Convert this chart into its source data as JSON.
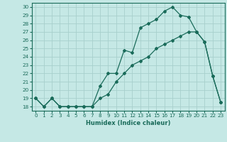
{
  "xlabel": "Humidex (Indice chaleur)",
  "ylabel": "",
  "background_color": "#c5e8e5",
  "grid_color": "#a8d0cc",
  "line_color": "#1a6b5a",
  "xlim": [
    -0.5,
    23.5
  ],
  "ylim": [
    17.5,
    30.5
  ],
  "yticks": [
    18,
    19,
    20,
    21,
    22,
    23,
    24,
    25,
    26,
    27,
    28,
    29,
    30
  ],
  "xticks": [
    0,
    1,
    2,
    3,
    4,
    5,
    6,
    7,
    8,
    9,
    10,
    11,
    12,
    13,
    14,
    15,
    16,
    17,
    18,
    19,
    20,
    21,
    22,
    23
  ],
  "xtick_labels": [
    "0",
    "1",
    "2",
    "3",
    "4",
    "5",
    "6",
    "7",
    "8",
    "9",
    "10",
    "11",
    "12",
    "13",
    "14",
    "15",
    "16",
    "17",
    "18",
    "19",
    "20",
    "21",
    "22",
    "23"
  ],
  "line1_x": [
    0,
    1,
    2,
    3,
    4,
    5,
    6,
    7,
    8,
    9,
    10,
    11,
    12,
    13,
    14,
    15,
    16,
    17,
    18,
    19,
    20,
    21,
    22,
    23
  ],
  "line1_y": [
    19.0,
    18.0,
    19.0,
    18.0,
    18.0,
    18.0,
    18.0,
    18.0,
    19.0,
    19.5,
    21.0,
    22.0,
    23.0,
    23.5,
    24.0,
    25.0,
    25.5,
    26.0,
    26.5,
    27.0,
    27.0,
    25.8,
    21.7,
    18.5
  ],
  "line2_x": [
    0,
    1,
    2,
    3,
    4,
    5,
    6,
    7,
    8,
    9,
    10,
    11,
    12,
    13,
    14,
    15,
    16,
    17,
    18,
    19,
    20,
    21,
    22,
    23
  ],
  "line2_y": [
    19.0,
    18.0,
    19.0,
    18.0,
    18.0,
    18.0,
    18.0,
    18.0,
    20.5,
    22.0,
    22.0,
    24.8,
    24.5,
    27.5,
    28.0,
    28.5,
    29.5,
    30.0,
    29.0,
    28.8,
    27.0,
    25.8,
    21.7,
    18.5
  ]
}
